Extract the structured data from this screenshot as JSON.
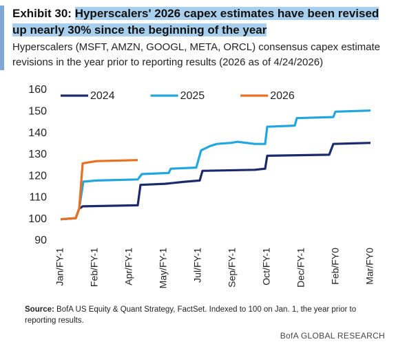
{
  "chart_data": {
    "type": "line",
    "exhibit": "Exhibit 30:",
    "title": "Hyperscalers' 2026 capex estimates have been revised up nearly 30% since the beginning of the year",
    "subtitle": "Hyperscalers (MSFT, AMZN, GOOGL, META, ORCL) consensus capex estimate revisions in the year prior to reporting results (2026 as of 4/24/2026)",
    "source_label": "Source:",
    "source": "BofA US Equity & Quant Strategy, FactSet. Indexed to 100 on Jan. 1, the year prior to reporting results.",
    "footer": "BofA GLOBAL RESEARCH",
    "xlim": [
      0,
      9
    ],
    "xticks": [
      {
        "value": 0,
        "label": "Jan/FY-1"
      },
      {
        "value": 1,
        "label": "Feb/FY-1"
      },
      {
        "value": 2,
        "label": "Apr/FY-1"
      },
      {
        "value": 3,
        "label": "May/FY-1"
      },
      {
        "value": 4,
        "label": "Jul/FY-1"
      },
      {
        "value": 5,
        "label": "Sep/FY-1"
      },
      {
        "value": 6,
        "label": "Oct/FY-1"
      },
      {
        "value": 7,
        "label": "Dec/FY-1"
      },
      {
        "value": 8,
        "label": "Feb/FY0"
      },
      {
        "value": 9,
        "label": "Mar/FY0"
      }
    ],
    "ylim": [
      90,
      160
    ],
    "yticks": [
      90,
      100,
      110,
      120,
      130,
      140,
      150,
      160
    ],
    "grid": false,
    "legend": "top",
    "series": [
      {
        "name": "2024",
        "color": "#1b2a6b",
        "x": [
          0,
          0.44,
          0.54,
          0.6,
          0.64,
          2.24,
          2.32,
          3.04,
          3.64,
          4.04,
          4.12,
          5.64,
          5.94,
          6.0,
          7.8,
          7.92,
          9.0
        ],
        "values": [
          100,
          100.5,
          105,
          105.5,
          106,
          106.5,
          116,
          116.5,
          117.5,
          118,
          122.5,
          123,
          123.5,
          129.5,
          130,
          135,
          135.5
        ]
      },
      {
        "name": "2025",
        "color": "#21a6e0",
        "x": [
          0,
          0.44,
          0.54,
          0.66,
          1.04,
          2.24,
          2.36,
          3.14,
          3.2,
          3.94,
          4.08,
          4.34,
          4.54,
          4.94,
          5.14,
          5.64,
          5.94,
          6.0,
          6.8,
          6.86,
          7.92,
          7.98,
          9.0
        ],
        "values": [
          100,
          100.5,
          105,
          117.5,
          118,
          118.5,
          121,
          121.5,
          123.5,
          124,
          132,
          134,
          135,
          135.5,
          136,
          135,
          135,
          143,
          143.5,
          147,
          147.5,
          150,
          150.5
        ]
      },
      {
        "name": "2026",
        "color": "#e8701f",
        "x": [
          0,
          0.44,
          0.54,
          0.64,
          1.04,
          2.24
        ],
        "values": [
          100,
          100.5,
          105,
          126,
          127,
          127.5
        ]
      }
    ]
  }
}
